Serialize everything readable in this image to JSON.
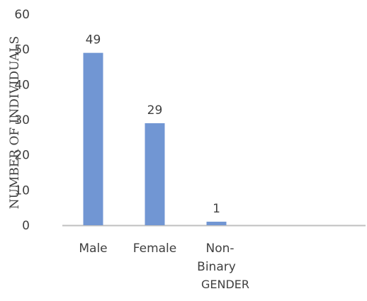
{
  "chart_data": {
    "type": "bar",
    "categories": [
      "Male",
      "Female",
      "Non-Binary"
    ],
    "category_lines": [
      [
        "Male"
      ],
      [
        "Female"
      ],
      [
        "Non-",
        "Binary"
      ]
    ],
    "values": [
      49,
      29,
      1
    ],
    "data_labels": [
      "49",
      "29",
      "1"
    ],
    "xlabel": "GENDER",
    "ylabel": "NUMBER OF INDIVIDUALS",
    "ylim": [
      0,
      60
    ],
    "yticks": [
      0,
      10,
      20,
      30,
      40,
      50,
      60
    ],
    "grid": false,
    "bar_color": "#7196D3",
    "axis_color": "#BFBFBF",
    "text_color": "#404040"
  }
}
